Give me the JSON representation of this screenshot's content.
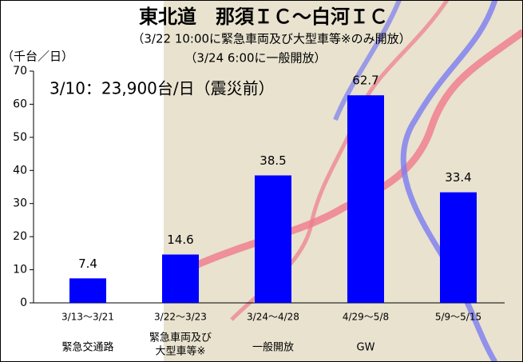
{
  "chart_data": {
    "type": "bar",
    "title": "東北道　那須ＩＣ～白河ＩＣ",
    "subtitle": [
      "（3/22 10:00に緊急車両及び大型車等※のみ開放）",
      "（3/24 6:00に一般開放）"
    ],
    "y_label": "（千台／日）",
    "annotation": "3/10：23,900台/日（震災前）",
    "categories": [
      "3/13～3/21",
      "3/22～3/23",
      "3/24～4/28",
      "4/29～5/8",
      "5/9～5/15"
    ],
    "phase_labels": [
      [
        "緊急交通路"
      ],
      [
        "緊急車両及び",
        "大型車等※"
      ],
      [
        "一般開放"
      ],
      [
        "GW"
      ],
      null
    ],
    "values": [
      7.4,
      14.6,
      38.5,
      62.7,
      33.4
    ],
    "color": "#0000ff",
    "ylim": [
      0,
      70
    ],
    "yticks": [
      0,
      10,
      20,
      30,
      40,
      50,
      60,
      70
    ]
  }
}
